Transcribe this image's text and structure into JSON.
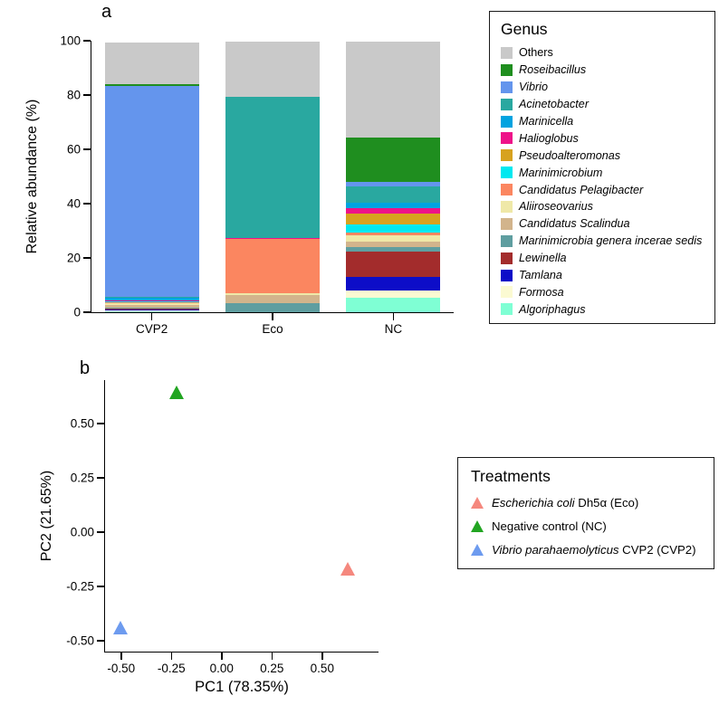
{
  "figure": {
    "panel_a_label": "a",
    "panel_b_label": "b"
  },
  "chart_data": [
    {
      "type": "bar",
      "stacked": true,
      "panel": "a",
      "ylabel": "Relative abundance (%)",
      "ylim": [
        0,
        100
      ],
      "yticks": [
        0,
        20,
        40,
        60,
        80,
        100
      ],
      "categories": [
        "CVP2",
        "Eco",
        "NC"
      ],
      "legend_title": "Genus",
      "legend_position": "right",
      "series": [
        {
          "name": "Others",
          "italic": false,
          "color": "#c9c9c9",
          "values": [
            15.5,
            20.0,
            35.0
          ]
        },
        {
          "name": "Roseibacillus",
          "italic": true,
          "color": "#1f8e1f",
          "values": [
            0.6,
            0.0,
            16.5
          ]
        },
        {
          "name": "Vibrio",
          "italic": true,
          "color": "#6495ed",
          "values": [
            77.5,
            0.0,
            1.5
          ]
        },
        {
          "name": "Acinetobacter",
          "italic": true,
          "color": "#29a8a0",
          "values": [
            0.3,
            52.0,
            6.0
          ]
        },
        {
          "name": "Marinicella",
          "italic": true,
          "color": "#00a3e0",
          "values": [
            1.2,
            0.0,
            2.0
          ]
        },
        {
          "name": "Halioglobus",
          "italic": true,
          "color": "#ee1289",
          "values": [
            0.2,
            0.5,
            2.0
          ]
        },
        {
          "name": "Pseudoalteromonas",
          "italic": true,
          "color": "#d7a21f",
          "values": [
            0.2,
            0.0,
            4.0
          ]
        },
        {
          "name": "Marinimicrobium",
          "italic": true,
          "color": "#00e8f0",
          "values": [
            0.3,
            0.0,
            3.0
          ]
        },
        {
          "name": "Candidatus Pelagibacter",
          "italic": true,
          "color": "#fb8660",
          "values": [
            0.2,
            20.0,
            1.0
          ]
        },
        {
          "name": "Aliiroseovarius",
          "italic": true,
          "color": "#efe8a8",
          "values": [
            0.8,
            0.5,
            2.5
          ]
        },
        {
          "name": "Candidatus Scalindua",
          "italic": true,
          "color": "#d2b48c",
          "values": [
            1.0,
            3.0,
            2.0
          ]
        },
        {
          "name": "Marinimicrobia genera incerae sedis",
          "italic": true,
          "color": "#5f9ea0",
          "values": [
            0.3,
            3.5,
            1.5
          ]
        },
        {
          "name": "Lewinella",
          "italic": true,
          "color": "#a32c2c",
          "values": [
            0.3,
            0.0,
            9.5
          ]
        },
        {
          "name": "Tamlana",
          "italic": true,
          "color": "#0d0dc8",
          "values": [
            0.3,
            0.0,
            5.0
          ]
        },
        {
          "name": "Formosa",
          "italic": true,
          "color": "#fbfad2",
          "values": [
            0.3,
            0.0,
            2.5
          ]
        },
        {
          "name": "Algoriphagus",
          "italic": true,
          "color": "#7fffd4",
          "values": [
            0.4,
            0.0,
            5.5
          ]
        }
      ]
    },
    {
      "type": "scatter",
      "panel": "b",
      "xlabel": "PC1 (78.35%)",
      "ylabel": "PC2 (21.65%)",
      "xlim": [
        -0.58,
        0.78
      ],
      "ylim": [
        -0.55,
        0.7
      ],
      "xticks": [
        -0.5,
        -0.25,
        0,
        0.25,
        0.5
      ],
      "xtick_labels": [
        "-0.50",
        "-0.25",
        "0.00",
        "0.25",
        "0.50"
      ],
      "yticks": [
        -0.5,
        -0.25,
        0,
        0.25,
        0.5
      ],
      "ytick_labels": [
        "-0.50",
        "-0.25",
        "0.00",
        "0.25",
        "0.50"
      ],
      "legend_title": "Treatments",
      "points": [
        {
          "treatment": "Eco",
          "x": 0.63,
          "y": -0.17,
          "color": "#f5887e",
          "marker": "triangle"
        },
        {
          "treatment": "NC",
          "x": -0.22,
          "y": 0.64,
          "color": "#22a522",
          "marker": "triangle"
        },
        {
          "treatment": "CVP2",
          "x": -0.5,
          "y": -0.44,
          "color": "#6d9bef",
          "marker": "triangle"
        }
      ],
      "legend_items": [
        {
          "color": "#f5887e",
          "parts": [
            {
              "text": "Escherichia coli",
              "italic": true
            },
            {
              "text": " Dh5α (Eco)",
              "italic": false
            }
          ]
        },
        {
          "color": "#22a522",
          "parts": [
            {
              "text": "Negative control (NC)",
              "italic": false
            }
          ]
        },
        {
          "color": "#6d9bef",
          "parts": [
            {
              "text": "Vibrio parahaemolyticus",
              "italic": true
            },
            {
              "text": " CVP2 (CVP2)",
              "italic": false
            }
          ]
        }
      ]
    }
  ]
}
